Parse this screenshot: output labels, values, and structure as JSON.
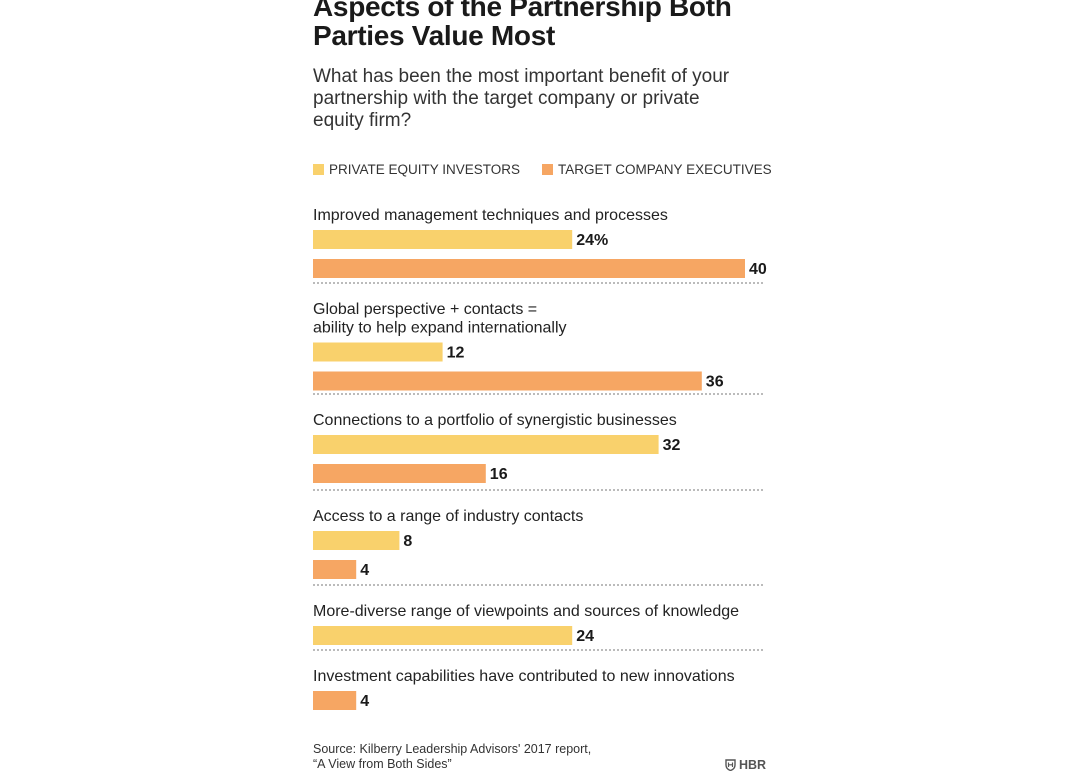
{
  "title": "Aspects of the Partnership Both Parties Value Most",
  "subtitle": "What has been the most important benefit of your partnership with the target company or private equity firm?",
  "legend": [
    {
      "label": "PRIVATE EQUITY INVESTORS",
      "color": "#f9d16c"
    },
    {
      "label": "TARGET COMPANY EXECUTIVES",
      "color": "#f6a663"
    }
  ],
  "source_line1": "Source: Kilberry Leadership Advisors' 2017 report,",
  "source_line2": "“A View from Both Sides”",
  "brand": "HBR",
  "chart_data": {
    "type": "bar",
    "orientation": "horizontal",
    "unit": "%",
    "series": [
      {
        "name": "PRIVATE EQUITY INVESTORS",
        "color": "#f9d16c"
      },
      {
        "name": "TARGET COMPANY EXECUTIVES",
        "color": "#f6a663"
      }
    ],
    "groups": [
      {
        "category": [
          "Improved management techniques and processes"
        ],
        "bars": [
          {
            "series": 0,
            "value": 24,
            "label": "24%"
          },
          {
            "series": 1,
            "value": 40,
            "label": "40"
          }
        ]
      },
      {
        "category": [
          "Global perspective + contacts =",
          "ability to help expand internationally"
        ],
        "bars": [
          {
            "series": 0,
            "value": 12,
            "label": "12"
          },
          {
            "series": 1,
            "value": 36,
            "label": "36"
          }
        ]
      },
      {
        "category": [
          "Connections to a portfolio of synergistic businesses"
        ],
        "bars": [
          {
            "series": 0,
            "value": 32,
            "label": "32"
          },
          {
            "series": 1,
            "value": 16,
            "label": "16"
          }
        ]
      },
      {
        "category": [
          "Access to a range of industry contacts"
        ],
        "bars": [
          {
            "series": 0,
            "value": 8,
            "label": "8"
          },
          {
            "series": 1,
            "value": 4,
            "label": "4"
          }
        ]
      },
      {
        "category": [
          "More-diverse range of viewpoints and sources of knowledge"
        ],
        "bars": [
          {
            "series": 0,
            "value": 24,
            "label": "24"
          }
        ]
      },
      {
        "category": [
          "Investment capabilities have contributed to new innovations"
        ],
        "bars": [
          {
            "series": 1,
            "value": 4,
            "label": "4"
          }
        ]
      }
    ],
    "xlim": [
      0,
      40
    ]
  }
}
